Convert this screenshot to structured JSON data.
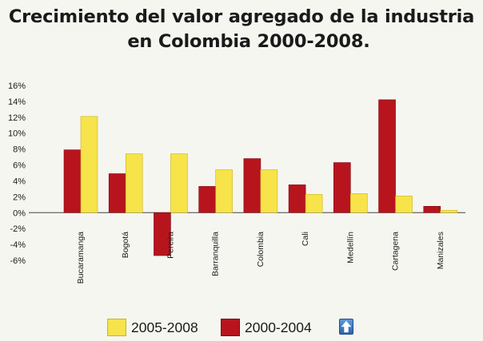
{
  "title_line1": "Crecimiento del valor agregado de la industria",
  "title_line2": "en Colombia 2000-2008.",
  "legend": {
    "item1": "2005-2008",
    "item2": "2000-2004",
    "icon": "up-arrow-icon"
  },
  "colors": {
    "series_2005_2008": "#f7e34a",
    "series_2000_2004": "#b8141d",
    "background": "#f6f6f1"
  },
  "chart_data": {
    "type": "bar",
    "categories": [
      "Bucaramanga",
      "Bogotá",
      "Pereira",
      "Barranquilla",
      "Colombia",
      "Cali",
      "Medellín",
      "Cartagena",
      "Manizales"
    ],
    "series": [
      {
        "name": "2000-2004",
        "values": [
          7.9,
          4.9,
          -5.4,
          3.3,
          6.8,
          3.5,
          6.3,
          14.2,
          0.8
        ]
      },
      {
        "name": "2005-2008",
        "values": [
          12.1,
          7.4,
          7.4,
          5.4,
          5.4,
          2.3,
          2.4,
          2.1,
          0.3
        ]
      }
    ],
    "yticks": [
      "16%",
      "14%",
      "12%",
      "10%",
      "8%",
      "6%",
      "4%",
      "2%",
      "0%",
      "-2%",
      "-4%",
      "-6%"
    ],
    "ylim": [
      -6,
      16
    ],
    "grid": false,
    "legend_position": "bottom"
  }
}
